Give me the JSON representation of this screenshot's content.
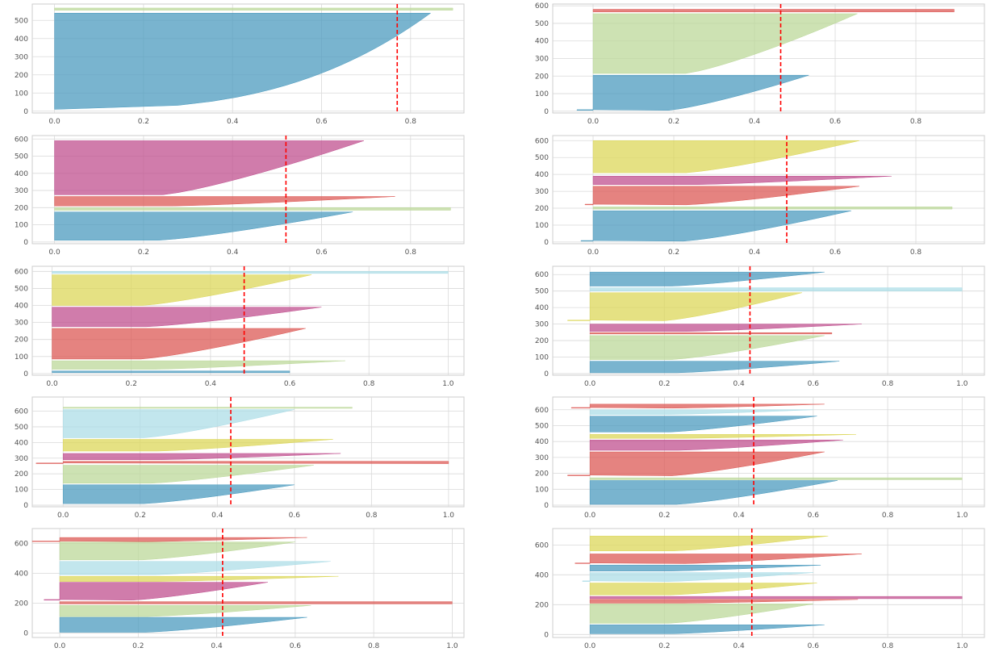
{
  "colors": {
    "plot_background": "#ffffff",
    "grid": "#d9d9d9",
    "axes_edge": "#cccccc",
    "tick_text": "#555555",
    "mean_line": "#ff0000",
    "palette": {
      "blue": "#4c9bbf",
      "green": "#bcd89a",
      "red": "#dc5a55",
      "magenta": "#c0508f",
      "yellow": "#dcd75a",
      "lightblue": "#addde7"
    }
  },
  "chart_data": [
    {
      "type": "area",
      "xlim": [
        -0.05,
        0.92
      ],
      "ylim": [
        -10,
        590
      ],
      "xticks": [
        "0.0",
        "0.2",
        "0.4",
        "0.6",
        "0.8"
      ],
      "yticks": [
        "0",
        "100",
        "200",
        "300",
        "400",
        "500"
      ],
      "mean_line_x": 0.77,
      "grid": true,
      "clusters": [
        {
          "color": "blue",
          "y_start": 10,
          "y_end": 540,
          "min_x": 0.0,
          "max_x": 0.845,
          "shape": "convex"
        },
        {
          "color": "green",
          "y_start": 556,
          "y_end": 568,
          "min_x": 0.0,
          "max_x": 0.895,
          "shape": "flat"
        }
      ]
    },
    {
      "type": "area",
      "xlim": [
        -0.1,
        0.97
      ],
      "ylim": [
        -10,
        610
      ],
      "xticks": [
        "0.0",
        "0.2",
        "0.4",
        "0.6",
        "0.8"
      ],
      "yticks": [
        "0",
        "100",
        "200",
        "300",
        "400",
        "500",
        "600"
      ],
      "mean_line_x": 0.465,
      "grid": true,
      "clusters": [
        {
          "color": "blue",
          "y_start": 5,
          "y_end": 205,
          "min_x": -0.04,
          "max_x": 0.535,
          "shape": "linear"
        },
        {
          "color": "green",
          "y_start": 215,
          "y_end": 555,
          "min_x": 0.0,
          "max_x": 0.655,
          "shape": "linear"
        },
        {
          "color": "red",
          "y_start": 565,
          "y_end": 580,
          "min_x": 0.0,
          "max_x": 0.895,
          "shape": "flat"
        }
      ]
    },
    {
      "type": "area",
      "xlim": [
        -0.05,
        0.92
      ],
      "ylim": [
        -10,
        620
      ],
      "xticks": [
        "0.0",
        "0.2",
        "0.4",
        "0.6",
        "0.8"
      ],
      "yticks": [
        "0",
        "100",
        "200",
        "300",
        "400",
        "500",
        "600"
      ],
      "mean_line_x": 0.52,
      "grid": true,
      "clusters": [
        {
          "color": "blue",
          "y_start": 10,
          "y_end": 175,
          "min_x": 0.0,
          "max_x": 0.67,
          "shape": "linear"
        },
        {
          "color": "green",
          "y_start": 185,
          "y_end": 200,
          "min_x": 0.0,
          "max_x": 0.89,
          "shape": "flat"
        },
        {
          "color": "red",
          "y_start": 210,
          "y_end": 265,
          "min_x": 0.0,
          "max_x": 0.765,
          "shape": "linear"
        },
        {
          "color": "magenta",
          "y_start": 275,
          "y_end": 590,
          "min_x": 0.0,
          "max_x": 0.695,
          "shape": "linear"
        }
      ]
    },
    {
      "type": "area",
      "xlim": [
        -0.1,
        0.97
      ],
      "ylim": [
        -10,
        630
      ],
      "xticks": [
        "0.0",
        "0.2",
        "0.4",
        "0.6",
        "0.8"
      ],
      "yticks": [
        "0",
        "100",
        "200",
        "300",
        "400",
        "500",
        "600"
      ],
      "mean_line_x": 0.48,
      "grid": true,
      "clusters": [
        {
          "color": "blue",
          "y_start": 5,
          "y_end": 185,
          "min_x": -0.03,
          "max_x": 0.64,
          "shape": "linear"
        },
        {
          "color": "green",
          "y_start": 195,
          "y_end": 208,
          "min_x": 0.0,
          "max_x": 0.89,
          "shape": "flat"
        },
        {
          "color": "red",
          "y_start": 220,
          "y_end": 330,
          "min_x": -0.02,
          "max_x": 0.66,
          "shape": "linear"
        },
        {
          "color": "magenta",
          "y_start": 340,
          "y_end": 390,
          "min_x": 0.0,
          "max_x": 0.74,
          "shape": "linear"
        },
        {
          "color": "yellow",
          "y_start": 410,
          "y_end": 600,
          "min_x": 0.0,
          "max_x": 0.66,
          "shape": "linear"
        }
      ]
    },
    {
      "type": "area",
      "xlim": [
        -0.05,
        1.04
      ],
      "ylim": [
        -10,
        630
      ],
      "xticks": [
        "0.0",
        "0.2",
        "0.4",
        "0.6",
        "0.8",
        "1.0"
      ],
      "yticks": [
        "0",
        "100",
        "200",
        "300",
        "400",
        "500",
        "600"
      ],
      "mean_line_x": 0.485,
      "grid": true,
      "clusters": [
        {
          "color": "blue",
          "y_start": 5,
          "y_end": 15,
          "min_x": 0.0,
          "max_x": 0.6,
          "shape": "flat"
        },
        {
          "color": "green",
          "y_start": 25,
          "y_end": 75,
          "min_x": 0.0,
          "max_x": 0.74,
          "shape": "linear"
        },
        {
          "color": "red",
          "y_start": 85,
          "y_end": 265,
          "min_x": 0.0,
          "max_x": 0.64,
          "shape": "linear"
        },
        {
          "color": "magenta",
          "y_start": 275,
          "y_end": 390,
          "min_x": 0.0,
          "max_x": 0.68,
          "shape": "linear"
        },
        {
          "color": "yellow",
          "y_start": 400,
          "y_end": 580,
          "min_x": 0.0,
          "max_x": 0.655,
          "shape": "linear"
        },
        {
          "color": "lightblue",
          "y_start": 588,
          "y_end": 600,
          "min_x": 0.0,
          "max_x": 1.0,
          "shape": "flat"
        }
      ]
    },
    {
      "type": "area",
      "xlim": [
        -0.1,
        1.06
      ],
      "ylim": [
        -10,
        650
      ],
      "xticks": [
        "0.0",
        "0.2",
        "0.4",
        "0.6",
        "0.8",
        "1.0"
      ],
      "yticks": [
        "0",
        "100",
        "200",
        "300",
        "400",
        "500",
        "600"
      ],
      "mean_line_x": 0.43,
      "grid": true,
      "clusters": [
        {
          "color": "blue",
          "y_start": 5,
          "y_end": 75,
          "min_x": 0.0,
          "max_x": 0.67,
          "shape": "linear"
        },
        {
          "color": "green",
          "y_start": 85,
          "y_end": 230,
          "min_x": 0.0,
          "max_x": 0.63,
          "shape": "linear"
        },
        {
          "color": "red",
          "y_start": 240,
          "y_end": 248,
          "min_x": 0.0,
          "max_x": 0.65,
          "shape": "flat"
        },
        {
          "color": "magenta",
          "y_start": 255,
          "y_end": 300,
          "min_x": 0.0,
          "max_x": 0.73,
          "shape": "linear"
        },
        {
          "color": "yellow",
          "y_start": 320,
          "y_end": 490,
          "min_x": -0.06,
          "max_x": 0.57,
          "shape": "linear"
        },
        {
          "color": "lightblue",
          "y_start": 500,
          "y_end": 520,
          "min_x": 0.0,
          "max_x": 1.0,
          "shape": "flat"
        },
        {
          "color": "blue",
          "y_start": 530,
          "y_end": 615,
          "min_x": 0.0,
          "max_x": 0.63,
          "shape": "linear"
        }
      ]
    },
    {
      "type": "area",
      "xlim": [
        -0.08,
        1.04
      ],
      "ylim": [
        -10,
        690
      ],
      "xticks": [
        "0.0",
        "0.2",
        "0.4",
        "0.6",
        "0.8",
        "1.0"
      ],
      "yticks": [
        "0",
        "100",
        "200",
        "300",
        "400",
        "500",
        "600"
      ],
      "mean_line_x": 0.435,
      "grid": true,
      "clusters": [
        {
          "color": "blue",
          "y_start": 10,
          "y_end": 130,
          "min_x": 0.0,
          "max_x": 0.6,
          "shape": "linear"
        },
        {
          "color": "green",
          "y_start": 140,
          "y_end": 255,
          "min_x": 0.0,
          "max_x": 0.65,
          "shape": "linear"
        },
        {
          "color": "red",
          "y_start": 265,
          "y_end": 280,
          "min_x": -0.07,
          "max_x": 1.0,
          "shape": "flat"
        },
        {
          "color": "magenta",
          "y_start": 290,
          "y_end": 330,
          "min_x": 0.0,
          "max_x": 0.72,
          "shape": "linear"
        },
        {
          "color": "yellow",
          "y_start": 345,
          "y_end": 420,
          "min_x": 0.0,
          "max_x": 0.7,
          "shape": "linear"
        },
        {
          "color": "lightblue",
          "y_start": 430,
          "y_end": 610,
          "min_x": 0.0,
          "max_x": 0.6,
          "shape": "linear"
        },
        {
          "color": "green",
          "y_start": 618,
          "y_end": 625,
          "min_x": 0.0,
          "max_x": 0.75,
          "shape": "flat"
        }
      ]
    },
    {
      "type": "area",
      "xlim": [
        -0.1,
        1.06
      ],
      "ylim": [
        -10,
        680
      ],
      "xticks": [
        "0.0",
        "0.2",
        "0.4",
        "0.6",
        "0.8",
        "1.0"
      ],
      "yticks": [
        "0",
        "100",
        "200",
        "300",
        "400",
        "500",
        "600"
      ],
      "mean_line_x": 0.44,
      "grid": true,
      "clusters": [
        {
          "color": "blue",
          "y_start": 5,
          "y_end": 155,
          "min_x": 0.0,
          "max_x": 0.665,
          "shape": "linear"
        },
        {
          "color": "green",
          "y_start": 160,
          "y_end": 172,
          "min_x": 0.0,
          "max_x": 1.0,
          "shape": "flat"
        },
        {
          "color": "red",
          "y_start": 185,
          "y_end": 335,
          "min_x": -0.06,
          "max_x": 0.63,
          "shape": "linear"
        },
        {
          "color": "magenta",
          "y_start": 345,
          "y_end": 410,
          "min_x": 0.0,
          "max_x": 0.68,
          "shape": "linear"
        },
        {
          "color": "yellow",
          "y_start": 420,
          "y_end": 445,
          "min_x": 0.0,
          "max_x": 0.715,
          "shape": "linear"
        },
        {
          "color": "blue",
          "y_start": 460,
          "y_end": 560,
          "min_x": 0.0,
          "max_x": 0.61,
          "shape": "linear"
        },
        {
          "color": "lightblue",
          "y_start": 570,
          "y_end": 600,
          "min_x": 0.0,
          "max_x": 0.6,
          "shape": "linear"
        },
        {
          "color": "red",
          "y_start": 610,
          "y_end": 635,
          "min_x": -0.05,
          "max_x": 0.63,
          "shape": "linear"
        }
      ]
    },
    {
      "type": "area",
      "xlim": [
        -0.07,
        1.03
      ],
      "ylim": [
        -30,
        700
      ],
      "xticks": [
        "0.0",
        "0.2",
        "0.4",
        "0.6",
        "0.8",
        "1.0"
      ],
      "yticks": [
        "0",
        "200",
        "400",
        "600"
      ],
      "mean_line_x": 0.415,
      "grid": true,
      "clusters": [
        {
          "color": "blue",
          "y_start": 5,
          "y_end": 105,
          "min_x": 0.0,
          "max_x": 0.63,
          "shape": "linear"
        },
        {
          "color": "green",
          "y_start": 110,
          "y_end": 185,
          "min_x": 0.0,
          "max_x": 0.64,
          "shape": "linear"
        },
        {
          "color": "red",
          "y_start": 195,
          "y_end": 210,
          "min_x": 0.0,
          "max_x": 1.0,
          "shape": "flat"
        },
        {
          "color": "magenta",
          "y_start": 220,
          "y_end": 340,
          "min_x": -0.04,
          "max_x": 0.53,
          "shape": "linear"
        },
        {
          "color": "yellow",
          "y_start": 345,
          "y_end": 380,
          "min_x": 0.0,
          "max_x": 0.71,
          "shape": "linear"
        },
        {
          "color": "lightblue",
          "y_start": 390,
          "y_end": 480,
          "min_x": 0.0,
          "max_x": 0.69,
          "shape": "linear"
        },
        {
          "color": "green",
          "y_start": 490,
          "y_end": 610,
          "min_x": 0.0,
          "max_x": 0.6,
          "shape": "linear"
        },
        {
          "color": "red",
          "y_start": 612,
          "y_end": 640,
          "min_x": -0.07,
          "max_x": 0.63,
          "shape": "linear"
        }
      ]
    },
    {
      "type": "area",
      "xlim": [
        -0.1,
        1.06
      ],
      "ylim": [
        -20,
        710
      ],
      "xticks": [
        "0.0",
        "0.2",
        "0.4",
        "0.6",
        "0.8",
        "1.0"
      ],
      "yticks": [
        "0",
        "200",
        "400",
        "600"
      ],
      "mean_line_x": 0.435,
      "grid": true,
      "clusters": [
        {
          "color": "blue",
          "y_start": 5,
          "y_end": 65,
          "min_x": 0.0,
          "max_x": 0.63,
          "shape": "linear"
        },
        {
          "color": "green",
          "y_start": 75,
          "y_end": 205,
          "min_x": 0.0,
          "max_x": 0.6,
          "shape": "linear"
        },
        {
          "color": "red",
          "y_start": 210,
          "y_end": 235,
          "min_x": 0.0,
          "max_x": 0.72,
          "shape": "linear"
        },
        {
          "color": "magenta",
          "y_start": 240,
          "y_end": 255,
          "min_x": 0.0,
          "max_x": 1.0,
          "shape": "flat"
        },
        {
          "color": "yellow",
          "y_start": 265,
          "y_end": 345,
          "min_x": 0.0,
          "max_x": 0.61,
          "shape": "linear"
        },
        {
          "color": "lightblue",
          "y_start": 355,
          "y_end": 415,
          "min_x": -0.02,
          "max_x": 0.6,
          "shape": "linear"
        },
        {
          "color": "blue",
          "y_start": 425,
          "y_end": 465,
          "min_x": 0.0,
          "max_x": 0.62,
          "shape": "linear"
        },
        {
          "color": "red",
          "y_start": 475,
          "y_end": 540,
          "min_x": -0.04,
          "max_x": 0.73,
          "shape": "linear"
        },
        {
          "color": "yellow",
          "y_start": 560,
          "y_end": 660,
          "min_x": 0.0,
          "max_x": 0.64,
          "shape": "linear"
        }
      ]
    }
  ]
}
